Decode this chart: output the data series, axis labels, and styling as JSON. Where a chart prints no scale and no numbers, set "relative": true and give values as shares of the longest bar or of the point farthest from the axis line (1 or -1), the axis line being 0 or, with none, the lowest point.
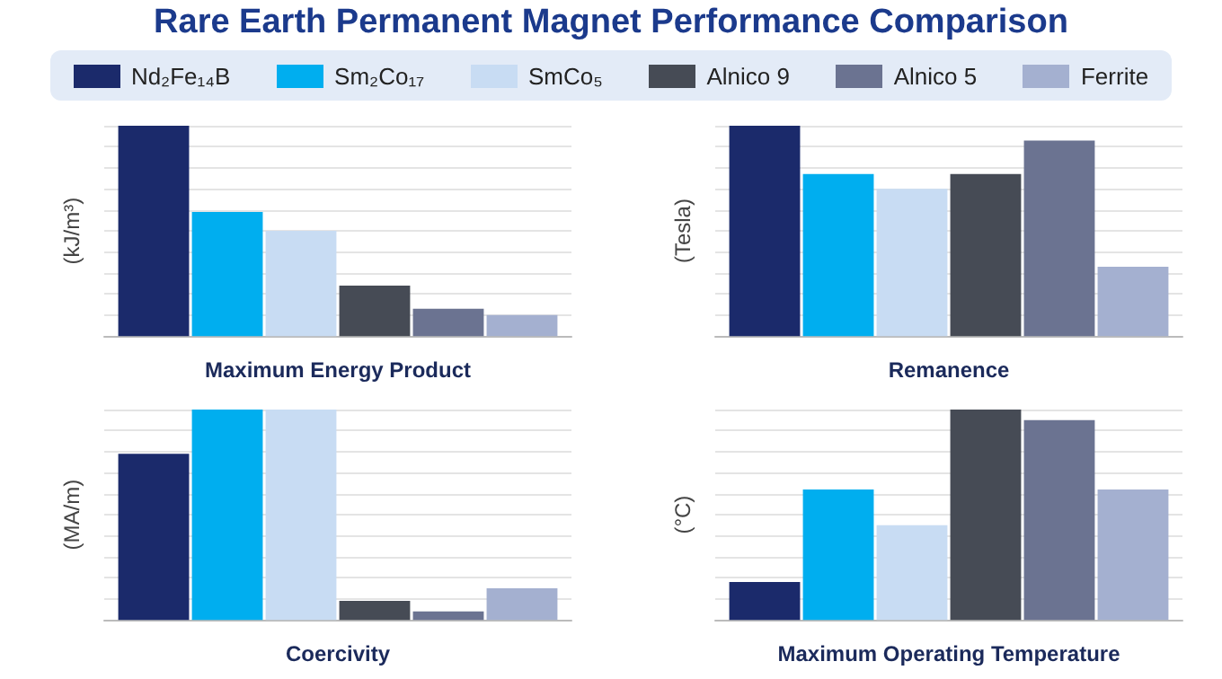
{
  "chart_data": [
    {
      "type": "bar",
      "title": "Rare Earth Permanent Magnet Performance Comparison",
      "xlabel": "Maximum Energy Product",
      "ylabel": "(kJ/m³)",
      "categories": [
        null
      ],
      "relative": true,
      "grid": "y",
      "legend": "top",
      "series": [
        {
          "name": "Nd₂Fe₁₄B",
          "color": "#1b2a6b",
          "values": [
            1
          ]
        },
        {
          "name": "Sm₂Co₁₇",
          "color": "#00aeef",
          "values": [
            0.59
          ]
        },
        {
          "name": "SmCo₅",
          "color": "#c8dcf3",
          "values": [
            0.5
          ]
        },
        {
          "name": "Alnico 9",
          "color": "#464b55",
          "values": [
            0.24
          ]
        },
        {
          "name": "Alnico 5",
          "color": "#6b7391",
          "values": [
            0.13
          ]
        },
        {
          "name": "Ferrite",
          "color": "#a4b0d0",
          "values": [
            0.1
          ]
        }
      ]
    },
    {
      "type": "bar",
      "xlabel": "Remanence",
      "ylabel": "(Tesla)",
      "categories": [
        null
      ],
      "relative": true,
      "grid": "y",
      "series": [
        {
          "color": "#1b2a6b",
          "values": [
            1
          ]
        },
        {
          "color": "#00aeef",
          "values": [
            0.77
          ]
        },
        {
          "color": "#c8dcf3",
          "values": [
            0.7
          ]
        },
        {
          "color": "#464b55",
          "values": [
            0.77
          ]
        },
        {
          "color": "#6b7391",
          "values": [
            0.93
          ]
        },
        {
          "color": "#a4b0d0",
          "values": [
            0.33
          ]
        }
      ]
    },
    {
      "type": "bar",
      "xlabel": "Coercivity",
      "ylabel": "(MA/m)",
      "categories": [
        null
      ],
      "relative": true,
      "grid": "y",
      "series": [
        {
          "color": "#1b2a6b",
          "values": [
            0.79
          ]
        },
        {
          "color": "#00aeef",
          "values": [
            1
          ]
        },
        {
          "color": "#c8dcf3",
          "values": [
            1
          ]
        },
        {
          "color": "#464b55",
          "values": [
            0.09
          ]
        },
        {
          "color": "#6b7391",
          "values": [
            0.04
          ]
        },
        {
          "color": "#a4b0d0",
          "values": [
            0.15
          ]
        }
      ]
    },
    {
      "type": "bar",
      "xlabel": "Maximum Operating Temperature",
      "ylabel": "(°C)",
      "categories": [
        null
      ],
      "relative": true,
      "grid": "y",
      "series": [
        {
          "color": "#1b2a6b",
          "values": [
            0.18
          ]
        },
        {
          "color": "#00aeef",
          "values": [
            0.62
          ]
        },
        {
          "color": "#c8dcf3",
          "values": [
            0.45
          ]
        },
        {
          "color": "#464b55",
          "values": [
            1
          ]
        },
        {
          "color": "#6b7391",
          "values": [
            0.95
          ]
        },
        {
          "color": "#a4b0d0",
          "values": [
            0.62
          ]
        }
      ]
    }
  ]
}
